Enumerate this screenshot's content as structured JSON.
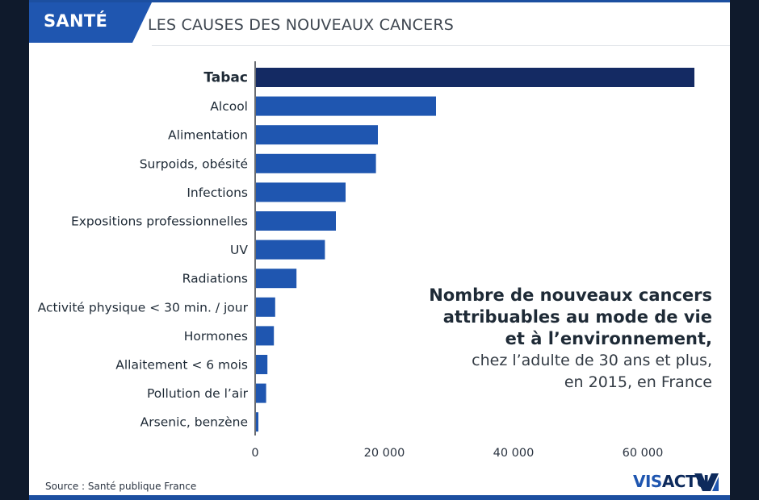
{
  "header": {
    "tag": "SANTÉ",
    "title": "LES CAUSES DES NOUVEAUX CANCERS"
  },
  "annotation": {
    "lines_bold": [
      "Nombre de nouveaux cancers",
      "attribuables au mode de vie",
      "et à l’environnement,"
    ],
    "lines_regular": [
      "chez l’adulte de 30 ans et plus,",
      "en 2015, en France"
    ]
  },
  "source": "Source : Santé publique France",
  "logo": {
    "part1": "VIS",
    "part2": "ACTU"
  },
  "colors": {
    "highlight_bar": "#142a63",
    "bar": "#1f56b0",
    "text": "#1e2a36",
    "accent": "#1f56b0"
  },
  "chart_data": {
    "type": "bar",
    "orientation": "horizontal",
    "categories": [
      "Tabac",
      "Alcool",
      "Alimentation",
      "Surpoids, obésité",
      "Infections",
      "Expositions professionnelles",
      "UV",
      "Radiations",
      "Activité physique < 30 min. / jour",
      "Hormones",
      "Allaitement < 6 mois",
      "Pollution de l’air",
      "Arsenic, benzène"
    ],
    "values": [
      68000,
      28000,
      19000,
      18700,
      14000,
      12500,
      10800,
      6400,
      3100,
      2900,
      1900,
      1700,
      500
    ],
    "highlight_index": 0,
    "xlim": [
      0,
      70000
    ],
    "xticks": [
      0,
      20000,
      40000,
      60000
    ],
    "xtick_labels": [
      "0",
      "20 000",
      "40 000",
      "60 000"
    ],
    "grid": false
  }
}
